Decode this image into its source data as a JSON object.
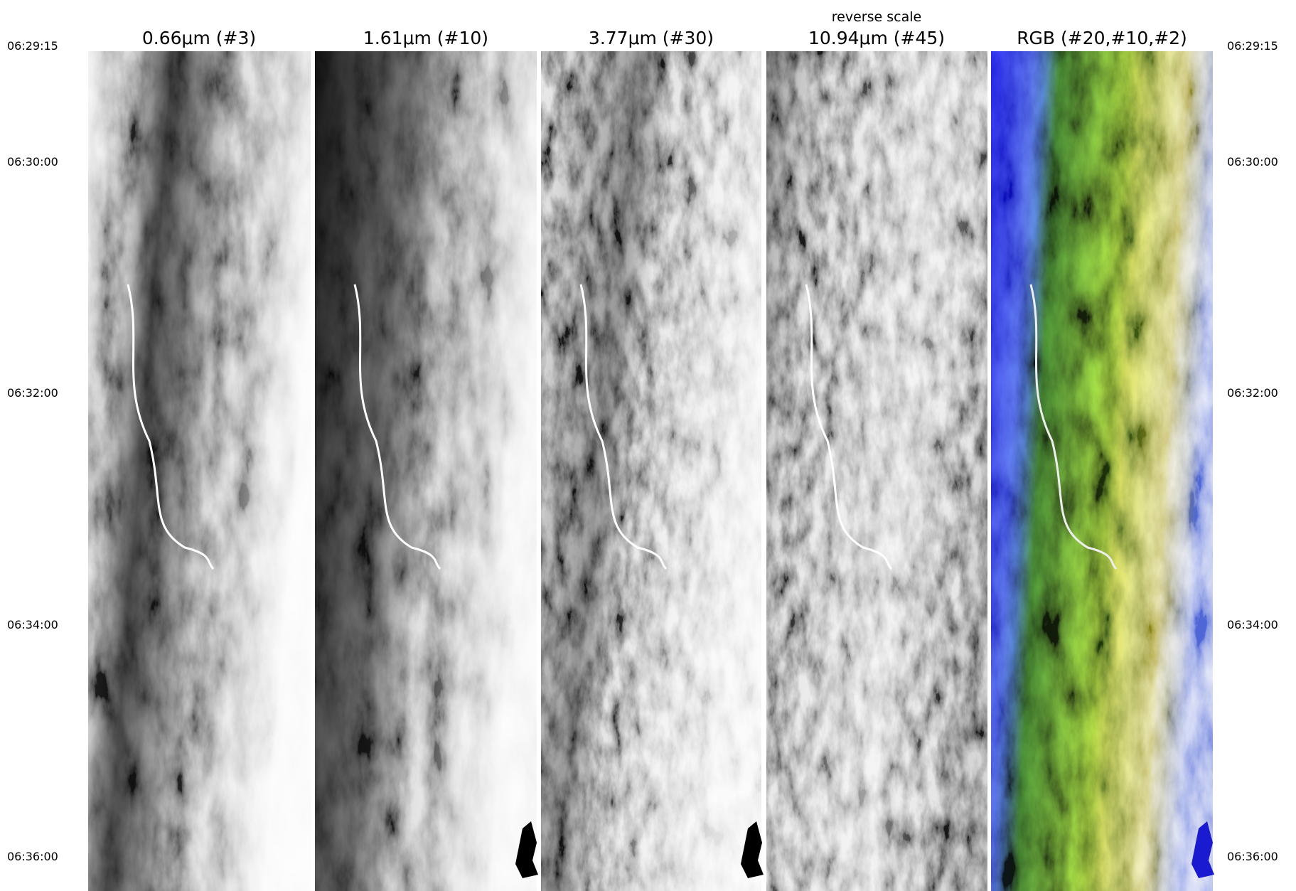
{
  "panels": [
    {
      "title": "0.66μm (#3)"
    },
    {
      "title": "1.61μm (#10)"
    },
    {
      "title": "3.77μm (#30)"
    },
    {
      "note": "reverse scale",
      "title": "10.94μm (#45)"
    },
    {
      "title": "RGB (#20,#10,#2)"
    }
  ],
  "times": [
    "06:29:15",
    "06:30:00",
    "06:32:00",
    "06:34:00",
    "06:36:00"
  ]
}
